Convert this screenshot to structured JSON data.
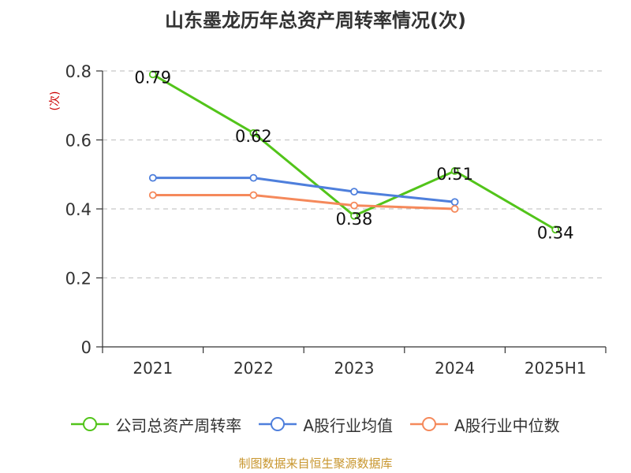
{
  "title": "山东墨龙历年总资产周转率情况(次)",
  "source": "制图数据来自恒生聚源数据库",
  "chart_data": {
    "type": "line",
    "title": "山东墨龙历年总资产周转率情况(次)",
    "ylabel": "(次)",
    "xlabel": "",
    "categories": [
      "2021",
      "2022",
      "2023",
      "2024",
      "2025H1"
    ],
    "ylim": [
      0,
      0.8
    ],
    "yticks": [
      "0",
      "0.2",
      "0.4",
      "0.6",
      "0.8"
    ],
    "grid": true,
    "legend_position": "bottom",
    "series": [
      {
        "name": "公司总资产周转率",
        "color": "#52c41a",
        "values": [
          0.79,
          0.62,
          0.38,
          0.51,
          0.34
        ],
        "labels": [
          "0.79",
          "0.62",
          "0.38",
          "0.51",
          "0.34"
        ]
      },
      {
        "name": "A股行业均值",
        "color": "#4e7fdc",
        "values": [
          0.49,
          0.49,
          0.45,
          0.42,
          null
        ]
      },
      {
        "name": "A股行业中位数",
        "color": "#f5895b",
        "values": [
          0.44,
          0.44,
          0.41,
          0.4,
          null
        ]
      }
    ]
  }
}
